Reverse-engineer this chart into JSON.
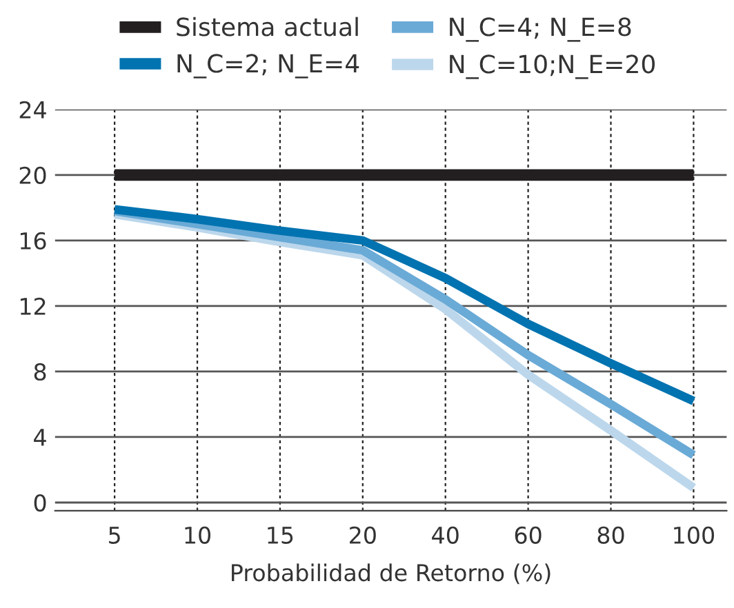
{
  "chart_data": {
    "type": "line",
    "xlabel": "Probabilidad de Retorno (%)",
    "categories": [
      "5",
      "10",
      "15",
      "20",
      "40",
      "60",
      "80",
      "100"
    ],
    "ylim": [
      -0.5,
      24
    ],
    "yticks": [
      0,
      4,
      8,
      12,
      16,
      20,
      24
    ],
    "grid": true,
    "legend": "top",
    "line_style": "solid",
    "marker": "none",
    "series": [
      {
        "name": "Sistema actual",
        "color": "#231f20",
        "values": [
          20,
          20,
          20,
          20,
          20,
          20,
          20,
          20
        ]
      },
      {
        "name": "N_C=2; N_E=4",
        "color": "#0073b0",
        "values": [
          17.9,
          17.3,
          16.6,
          16.0,
          13.7,
          10.9,
          8.5,
          6.2
        ]
      },
      {
        "name": "N_C=4; N_E=8",
        "color": "#6aaad6",
        "values": [
          17.8,
          17.0,
          16.2,
          15.4,
          12.4,
          9.0,
          6.0,
          2.9
        ]
      },
      {
        "name": "N_C=10;N_E=20",
        "color": "#bcd7ec",
        "values": [
          17.6,
          16.8,
          15.9,
          15.1,
          11.8,
          7.8,
          4.4,
          0.9
        ]
      }
    ]
  }
}
